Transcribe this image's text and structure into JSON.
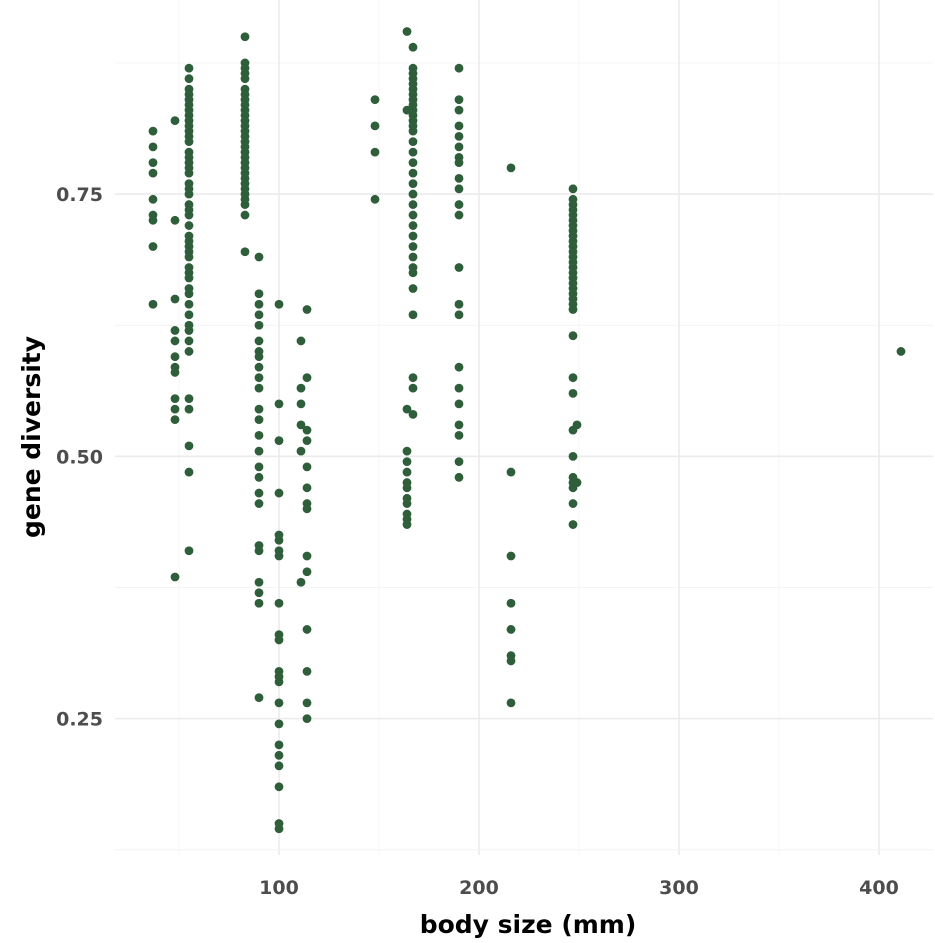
{
  "chart_data": {
    "type": "scatter",
    "xlabel": "body size (mm)",
    "ylabel": "gene diversity",
    "xlim": [
      18,
      427
    ],
    "ylim": [
      0.12,
      0.935
    ],
    "x_ticks": [
      100,
      200,
      300,
      400
    ],
    "x_tick_labels": [
      "100",
      "200",
      "300",
      "400"
    ],
    "y_ticks": [
      0.25,
      0.5,
      0.75
    ],
    "y_tick_labels": [
      "0.25",
      "0.50",
      "0.75"
    ],
    "grid": true,
    "marker_color": "#2f5e3b",
    "series": [
      {
        "points": [
          [
            37,
            0.81
          ],
          [
            37,
            0.795
          ],
          [
            37,
            0.78
          ],
          [
            37,
            0.77
          ],
          [
            37,
            0.745
          ],
          [
            37,
            0.73
          ],
          [
            37,
            0.725
          ],
          [
            37,
            0.7
          ],
          [
            37,
            0.645
          ],
          [
            48,
            0.82
          ],
          [
            48,
            0.725
          ],
          [
            48,
            0.65
          ],
          [
            48,
            0.62
          ],
          [
            48,
            0.61
          ],
          [
            48,
            0.595
          ],
          [
            48,
            0.585
          ],
          [
            48,
            0.58
          ],
          [
            48,
            0.555
          ],
          [
            48,
            0.545
          ],
          [
            48,
            0.535
          ],
          [
            48,
            0.385
          ],
          [
            55,
            0.87
          ],
          [
            55,
            0.86
          ],
          [
            55,
            0.85
          ],
          [
            55,
            0.845
          ],
          [
            55,
            0.84
          ],
          [
            55,
            0.835
          ],
          [
            55,
            0.83
          ],
          [
            55,
            0.825
          ],
          [
            55,
            0.82
          ],
          [
            55,
            0.815
          ],
          [
            55,
            0.81
          ],
          [
            55,
            0.805
          ],
          [
            55,
            0.8
          ],
          [
            55,
            0.79
          ],
          [
            55,
            0.785
          ],
          [
            55,
            0.78
          ],
          [
            55,
            0.775
          ],
          [
            55,
            0.77
          ],
          [
            55,
            0.76
          ],
          [
            55,
            0.755
          ],
          [
            55,
            0.75
          ],
          [
            55,
            0.74
          ],
          [
            55,
            0.735
          ],
          [
            55,
            0.73
          ],
          [
            55,
            0.72
          ],
          [
            55,
            0.71
          ],
          [
            55,
            0.705
          ],
          [
            55,
            0.7
          ],
          [
            55,
            0.695
          ],
          [
            55,
            0.69
          ],
          [
            55,
            0.68
          ],
          [
            55,
            0.675
          ],
          [
            55,
            0.67
          ],
          [
            55,
            0.66
          ],
          [
            55,
            0.655
          ],
          [
            55,
            0.645
          ],
          [
            55,
            0.635
          ],
          [
            55,
            0.625
          ],
          [
            55,
            0.62
          ],
          [
            55,
            0.61
          ],
          [
            55,
            0.6
          ],
          [
            55,
            0.555
          ],
          [
            55,
            0.545
          ],
          [
            55,
            0.51
          ],
          [
            55,
            0.485
          ],
          [
            55,
            0.41
          ],
          [
            83,
            0.9
          ],
          [
            83,
            0.875
          ],
          [
            83,
            0.87
          ],
          [
            83,
            0.865
          ],
          [
            83,
            0.86
          ],
          [
            83,
            0.85
          ],
          [
            83,
            0.845
          ],
          [
            83,
            0.84
          ],
          [
            83,
            0.835
          ],
          [
            83,
            0.83
          ],
          [
            83,
            0.825
          ],
          [
            83,
            0.82
          ],
          [
            83,
            0.815
          ],
          [
            83,
            0.81
          ],
          [
            83,
            0.805
          ],
          [
            83,
            0.8
          ],
          [
            83,
            0.795
          ],
          [
            83,
            0.79
          ],
          [
            83,
            0.785
          ],
          [
            83,
            0.78
          ],
          [
            83,
            0.775
          ],
          [
            83,
            0.77
          ],
          [
            83,
            0.765
          ],
          [
            83,
            0.76
          ],
          [
            83,
            0.755
          ],
          [
            83,
            0.75
          ],
          [
            83,
            0.745
          ],
          [
            83,
            0.74
          ],
          [
            83,
            0.73
          ],
          [
            83,
            0.695
          ],
          [
            90,
            0.69
          ],
          [
            90,
            0.655
          ],
          [
            90,
            0.645
          ],
          [
            90,
            0.635
          ],
          [
            90,
            0.625
          ],
          [
            90,
            0.61
          ],
          [
            90,
            0.6
          ],
          [
            90,
            0.595
          ],
          [
            90,
            0.585
          ],
          [
            90,
            0.575
          ],
          [
            90,
            0.565
          ],
          [
            90,
            0.545
          ],
          [
            90,
            0.535
          ],
          [
            90,
            0.52
          ],
          [
            90,
            0.505
          ],
          [
            90,
            0.49
          ],
          [
            90,
            0.48
          ],
          [
            90,
            0.465
          ],
          [
            90,
            0.455
          ],
          [
            90,
            0.415
          ],
          [
            90,
            0.41
          ],
          [
            90,
            0.38
          ],
          [
            90,
            0.37
          ],
          [
            90,
            0.36
          ],
          [
            90,
            0.27
          ],
          [
            100,
            0.645
          ],
          [
            100,
            0.55
          ],
          [
            100,
            0.515
          ],
          [
            100,
            0.465
          ],
          [
            100,
            0.425
          ],
          [
            100,
            0.42
          ],
          [
            100,
            0.41
          ],
          [
            100,
            0.405
          ],
          [
            100,
            0.36
          ],
          [
            100,
            0.33
          ],
          [
            100,
            0.325
          ],
          [
            100,
            0.295
          ],
          [
            100,
            0.29
          ],
          [
            100,
            0.285
          ],
          [
            100,
            0.265
          ],
          [
            100,
            0.245
          ],
          [
            100,
            0.225
          ],
          [
            100,
            0.215
          ],
          [
            100,
            0.205
          ],
          [
            100,
            0.185
          ],
          [
            100,
            0.15
          ],
          [
            100,
            0.145
          ],
          [
            111,
            0.61
          ],
          [
            111,
            0.565
          ],
          [
            111,
            0.55
          ],
          [
            111,
            0.53
          ],
          [
            111,
            0.505
          ],
          [
            111,
            0.38
          ],
          [
            114,
            0.64
          ],
          [
            114,
            0.575
          ],
          [
            114,
            0.525
          ],
          [
            114,
            0.515
          ],
          [
            114,
            0.49
          ],
          [
            114,
            0.47
          ],
          [
            114,
            0.455
          ],
          [
            114,
            0.45
          ],
          [
            114,
            0.405
          ],
          [
            114,
            0.39
          ],
          [
            114,
            0.335
          ],
          [
            114,
            0.295
          ],
          [
            114,
            0.265
          ],
          [
            114,
            0.25
          ],
          [
            148,
            0.84
          ],
          [
            148,
            0.815
          ],
          [
            148,
            0.79
          ],
          [
            148,
            0.745
          ],
          [
            164,
            0.905
          ],
          [
            164,
            0.83
          ],
          [
            164,
            0.545
          ],
          [
            164,
            0.505
          ],
          [
            164,
            0.495
          ],
          [
            164,
            0.485
          ],
          [
            164,
            0.475
          ],
          [
            164,
            0.47
          ],
          [
            164,
            0.46
          ],
          [
            164,
            0.455
          ],
          [
            164,
            0.445
          ],
          [
            164,
            0.44
          ],
          [
            164,
            0.435
          ],
          [
            167,
            0.89
          ],
          [
            167,
            0.87
          ],
          [
            167,
            0.865
          ],
          [
            167,
            0.86
          ],
          [
            167,
            0.855
          ],
          [
            167,
            0.85
          ],
          [
            167,
            0.845
          ],
          [
            167,
            0.84
          ],
          [
            167,
            0.835
          ],
          [
            167,
            0.83
          ],
          [
            167,
            0.825
          ],
          [
            167,
            0.82
          ],
          [
            167,
            0.815
          ],
          [
            167,
            0.81
          ],
          [
            167,
            0.8
          ],
          [
            167,
            0.79
          ],
          [
            167,
            0.78
          ],
          [
            167,
            0.77
          ],
          [
            167,
            0.76
          ],
          [
            167,
            0.75
          ],
          [
            167,
            0.74
          ],
          [
            167,
            0.73
          ],
          [
            167,
            0.72
          ],
          [
            167,
            0.71
          ],
          [
            167,
            0.7
          ],
          [
            167,
            0.69
          ],
          [
            167,
            0.68
          ],
          [
            167,
            0.675
          ],
          [
            167,
            0.66
          ],
          [
            167,
            0.635
          ],
          [
            167,
            0.575
          ],
          [
            167,
            0.565
          ],
          [
            167,
            0.54
          ],
          [
            190,
            0.87
          ],
          [
            190,
            0.84
          ],
          [
            190,
            0.83
          ],
          [
            190,
            0.815
          ],
          [
            190,
            0.805
          ],
          [
            190,
            0.795
          ],
          [
            190,
            0.785
          ],
          [
            190,
            0.78
          ],
          [
            190,
            0.765
          ],
          [
            190,
            0.755
          ],
          [
            190,
            0.74
          ],
          [
            190,
            0.73
          ],
          [
            190,
            0.68
          ],
          [
            190,
            0.645
          ],
          [
            190,
            0.635
          ],
          [
            190,
            0.585
          ],
          [
            190,
            0.565
          ],
          [
            190,
            0.55
          ],
          [
            190,
            0.53
          ],
          [
            190,
            0.52
          ],
          [
            190,
            0.495
          ],
          [
            190,
            0.48
          ],
          [
            216,
            0.775
          ],
          [
            216,
            0.485
          ],
          [
            216,
            0.405
          ],
          [
            216,
            0.36
          ],
          [
            216,
            0.335
          ],
          [
            216,
            0.31
          ],
          [
            216,
            0.305
          ],
          [
            216,
            0.265
          ],
          [
            247,
            0.755
          ],
          [
            247,
            0.745
          ],
          [
            247,
            0.74
          ],
          [
            247,
            0.735
          ],
          [
            247,
            0.73
          ],
          [
            247,
            0.725
          ],
          [
            247,
            0.72
          ],
          [
            247,
            0.715
          ],
          [
            247,
            0.71
          ],
          [
            247,
            0.705
          ],
          [
            247,
            0.7
          ],
          [
            247,
            0.695
          ],
          [
            247,
            0.69
          ],
          [
            247,
            0.685
          ],
          [
            247,
            0.68
          ],
          [
            247,
            0.675
          ],
          [
            247,
            0.67
          ],
          [
            247,
            0.665
          ],
          [
            247,
            0.66
          ],
          [
            247,
            0.655
          ],
          [
            247,
            0.65
          ],
          [
            247,
            0.645
          ],
          [
            247,
            0.64
          ],
          [
            247,
            0.615
          ],
          [
            247,
            0.575
          ],
          [
            247,
            0.56
          ],
          [
            247,
            0.525
          ],
          [
            247,
            0.5
          ],
          [
            247,
            0.48
          ],
          [
            247,
            0.475
          ],
          [
            247,
            0.47
          ],
          [
            247,
            0.455
          ],
          [
            247,
            0.435
          ],
          [
            249,
            0.53
          ],
          [
            249,
            0.475
          ],
          [
            411,
            0.6
          ]
        ]
      }
    ]
  }
}
